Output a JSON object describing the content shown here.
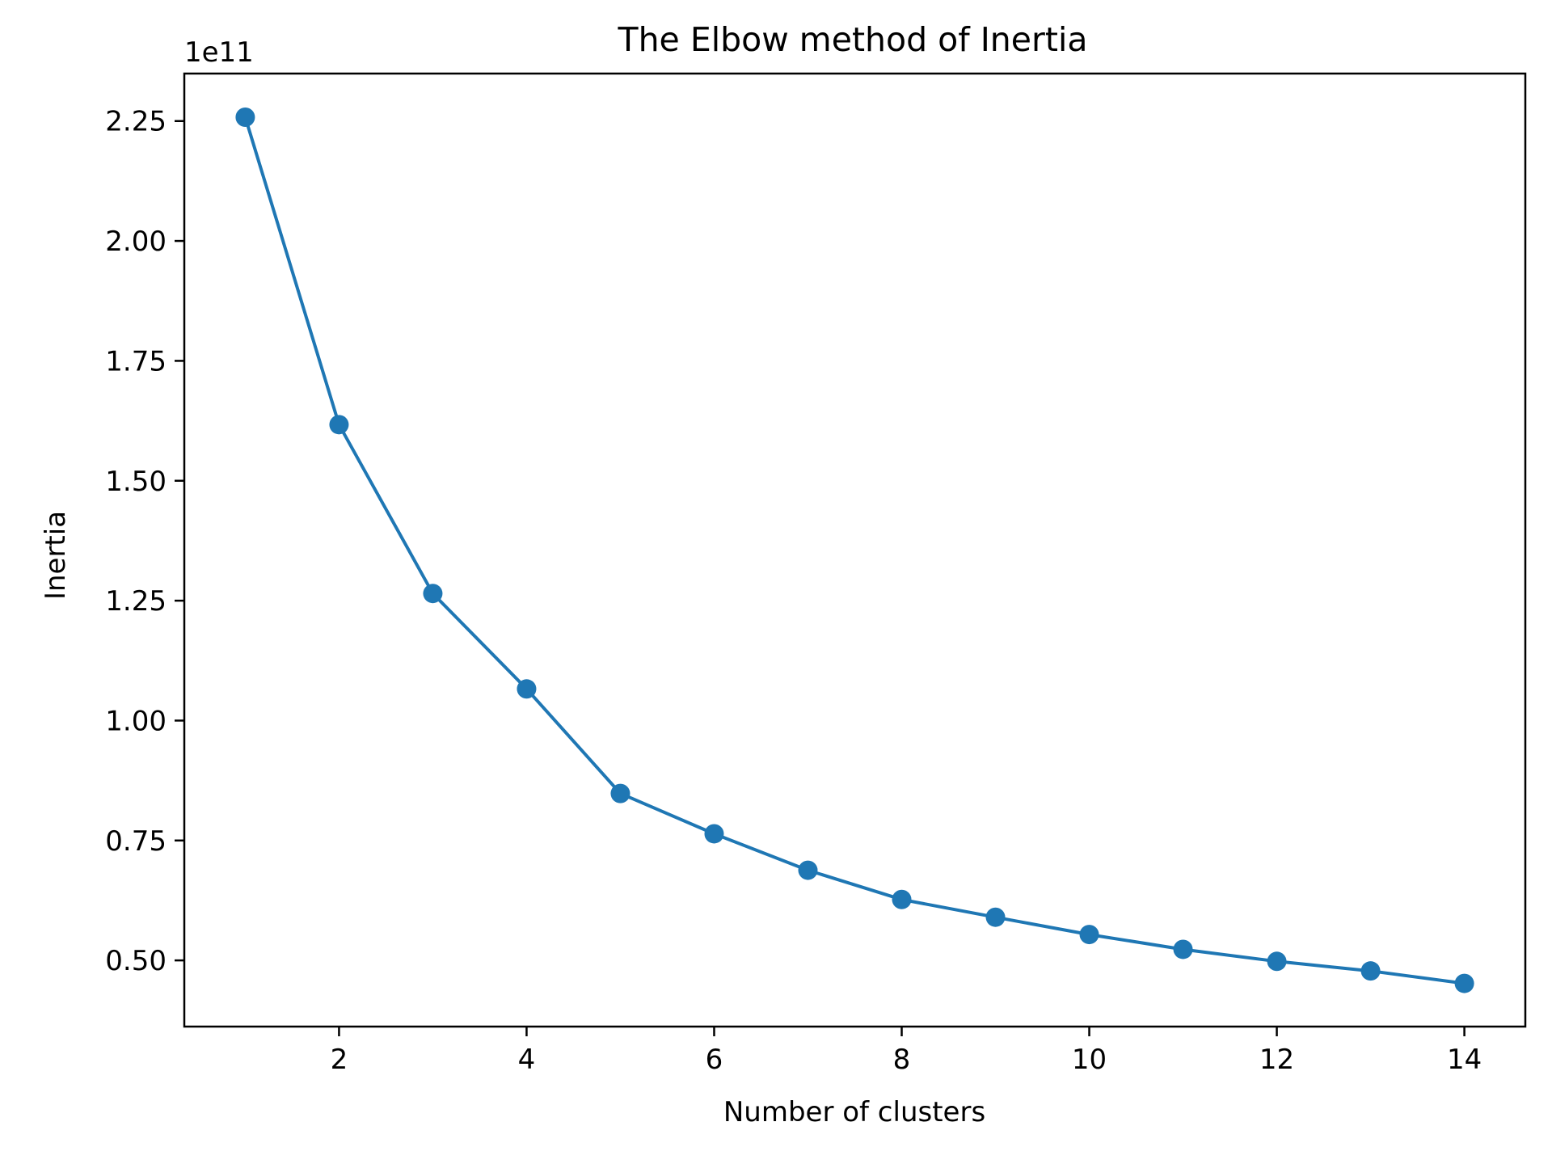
{
  "chart_data": {
    "type": "line",
    "title": "The Elbow method of Inertia",
    "xlabel": "Number of clusters",
    "ylabel": "Inertia",
    "y_offset_label": "1e11",
    "x": [
      1,
      2,
      3,
      4,
      5,
      6,
      7,
      8,
      9,
      10,
      11,
      12,
      13,
      14
    ],
    "series": [
      {
        "values": [
          2.258,
          1.617,
          1.265,
          1.066,
          0.848,
          0.764,
          0.688,
          0.627,
          0.59,
          0.554,
          0.523,
          0.498,
          0.478,
          0.452
        ]
      }
    ],
    "y_scale": 100000000000.0,
    "xlim": [
      0.35,
      14.65
    ],
    "ylim": [
      0.362,
      2.349
    ],
    "x_ticks": [
      2,
      4,
      6,
      8,
      10,
      12,
      14
    ],
    "x_tick_labels": [
      "2",
      "4",
      "6",
      "8",
      "10",
      "12",
      "14"
    ],
    "y_ticks": [
      0.5,
      0.75,
      1.0,
      1.25,
      1.5,
      1.75,
      2.0,
      2.25
    ],
    "y_tick_labels": [
      "0.50",
      "0.75",
      "1.00",
      "1.25",
      "1.50",
      "1.75",
      "2.00",
      "2.25"
    ],
    "grid": false,
    "color": "#1f77b4",
    "marker": "circle"
  }
}
